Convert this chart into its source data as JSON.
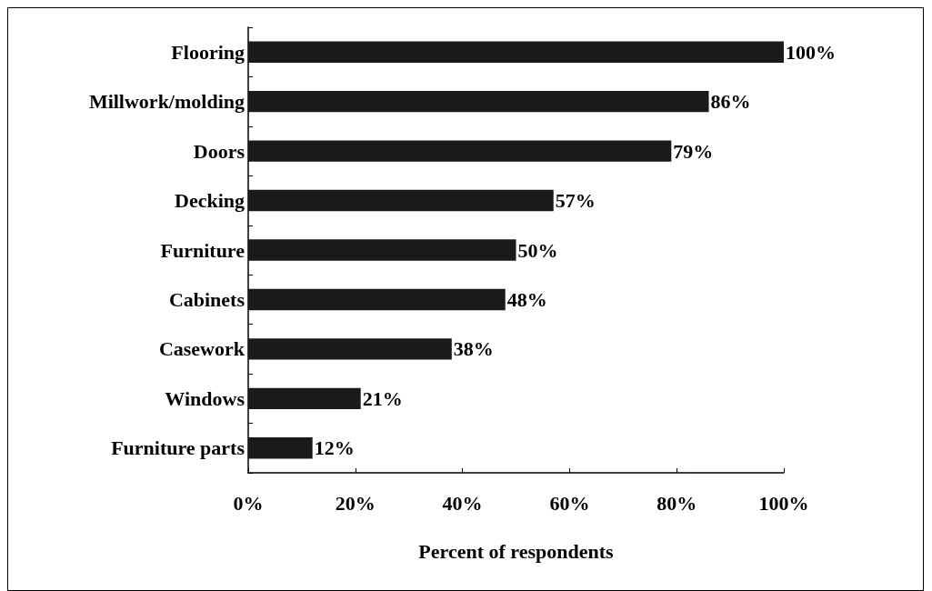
{
  "chart_data": {
    "type": "bar",
    "orientation": "horizontal",
    "categories": [
      "Flooring",
      "Millwork/molding",
      "Doors",
      "Decking",
      "Furniture",
      "Cabinets",
      "Casework",
      "Windows",
      "Furniture parts"
    ],
    "values": [
      100,
      86,
      79,
      57,
      50,
      48,
      38,
      21,
      12
    ],
    "value_labels": [
      "100%",
      "86%",
      "79%",
      "57%",
      "50%",
      "48%",
      "38%",
      "21%",
      "12%"
    ],
    "color": "#1a1a1a",
    "xlabel": "Percent of respondents",
    "xlim": [
      0,
      100
    ],
    "xticks": [
      {
        "value": 0,
        "label": "0%"
      },
      {
        "value": 20,
        "label": "20%"
      },
      {
        "value": 40,
        "label": "40%"
      },
      {
        "value": 60,
        "label": "60%"
      },
      {
        "value": 80,
        "label": "80%"
      },
      {
        "value": 100,
        "label": "100%"
      }
    ]
  }
}
